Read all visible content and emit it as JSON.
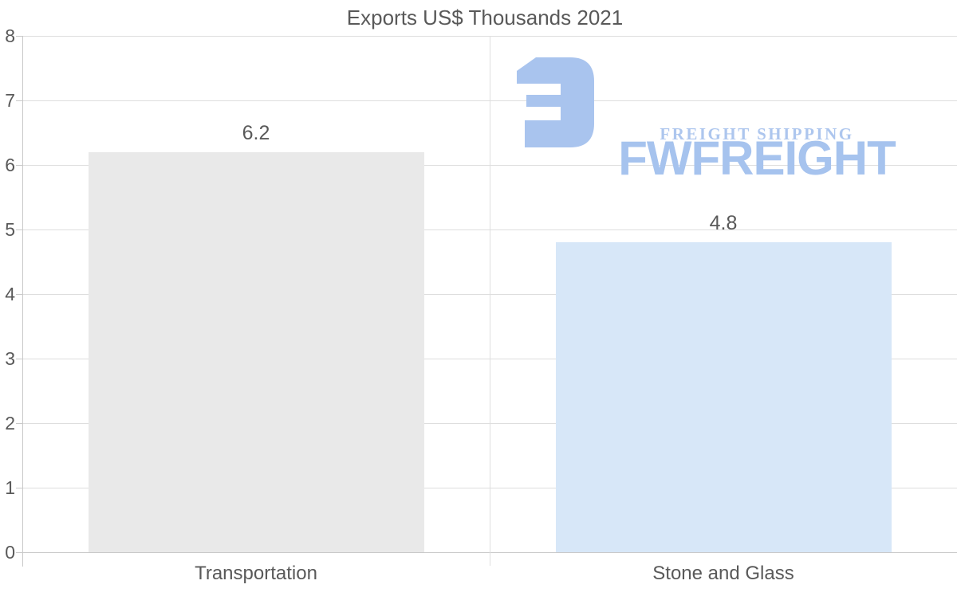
{
  "chart_data": {
    "type": "bar",
    "title": "Exports US$ Thousands 2021",
    "categories": [
      "Transportation",
      "Stone and Glass"
    ],
    "values": [
      6.2,
      4.8
    ],
    "value_labels": [
      "6.2",
      "4.8"
    ],
    "bar_colors": [
      "#e9e9e9",
      "#d7e7f8"
    ],
    "xlabel": "",
    "ylabel": "",
    "ylim": [
      0,
      8
    ],
    "yticks": [
      0,
      1,
      2,
      3,
      4,
      5,
      6,
      7,
      8
    ],
    "grid": "horizontal gridlines at each integer, vertical divider between categories, top border line",
    "legend": "none"
  },
  "logo": {
    "brand": "FWFREIGHT",
    "tagline": "FREIGHT SHIPPING",
    "brand_color": "#a6c3ee",
    "icon_color": "#a9c4ee",
    "icon": "fwfreight-mark-icon"
  },
  "colors": {
    "background": "#ffffff",
    "text": "#595959",
    "gridline": "#dedede",
    "axis_line": "#c9c9c9"
  }
}
